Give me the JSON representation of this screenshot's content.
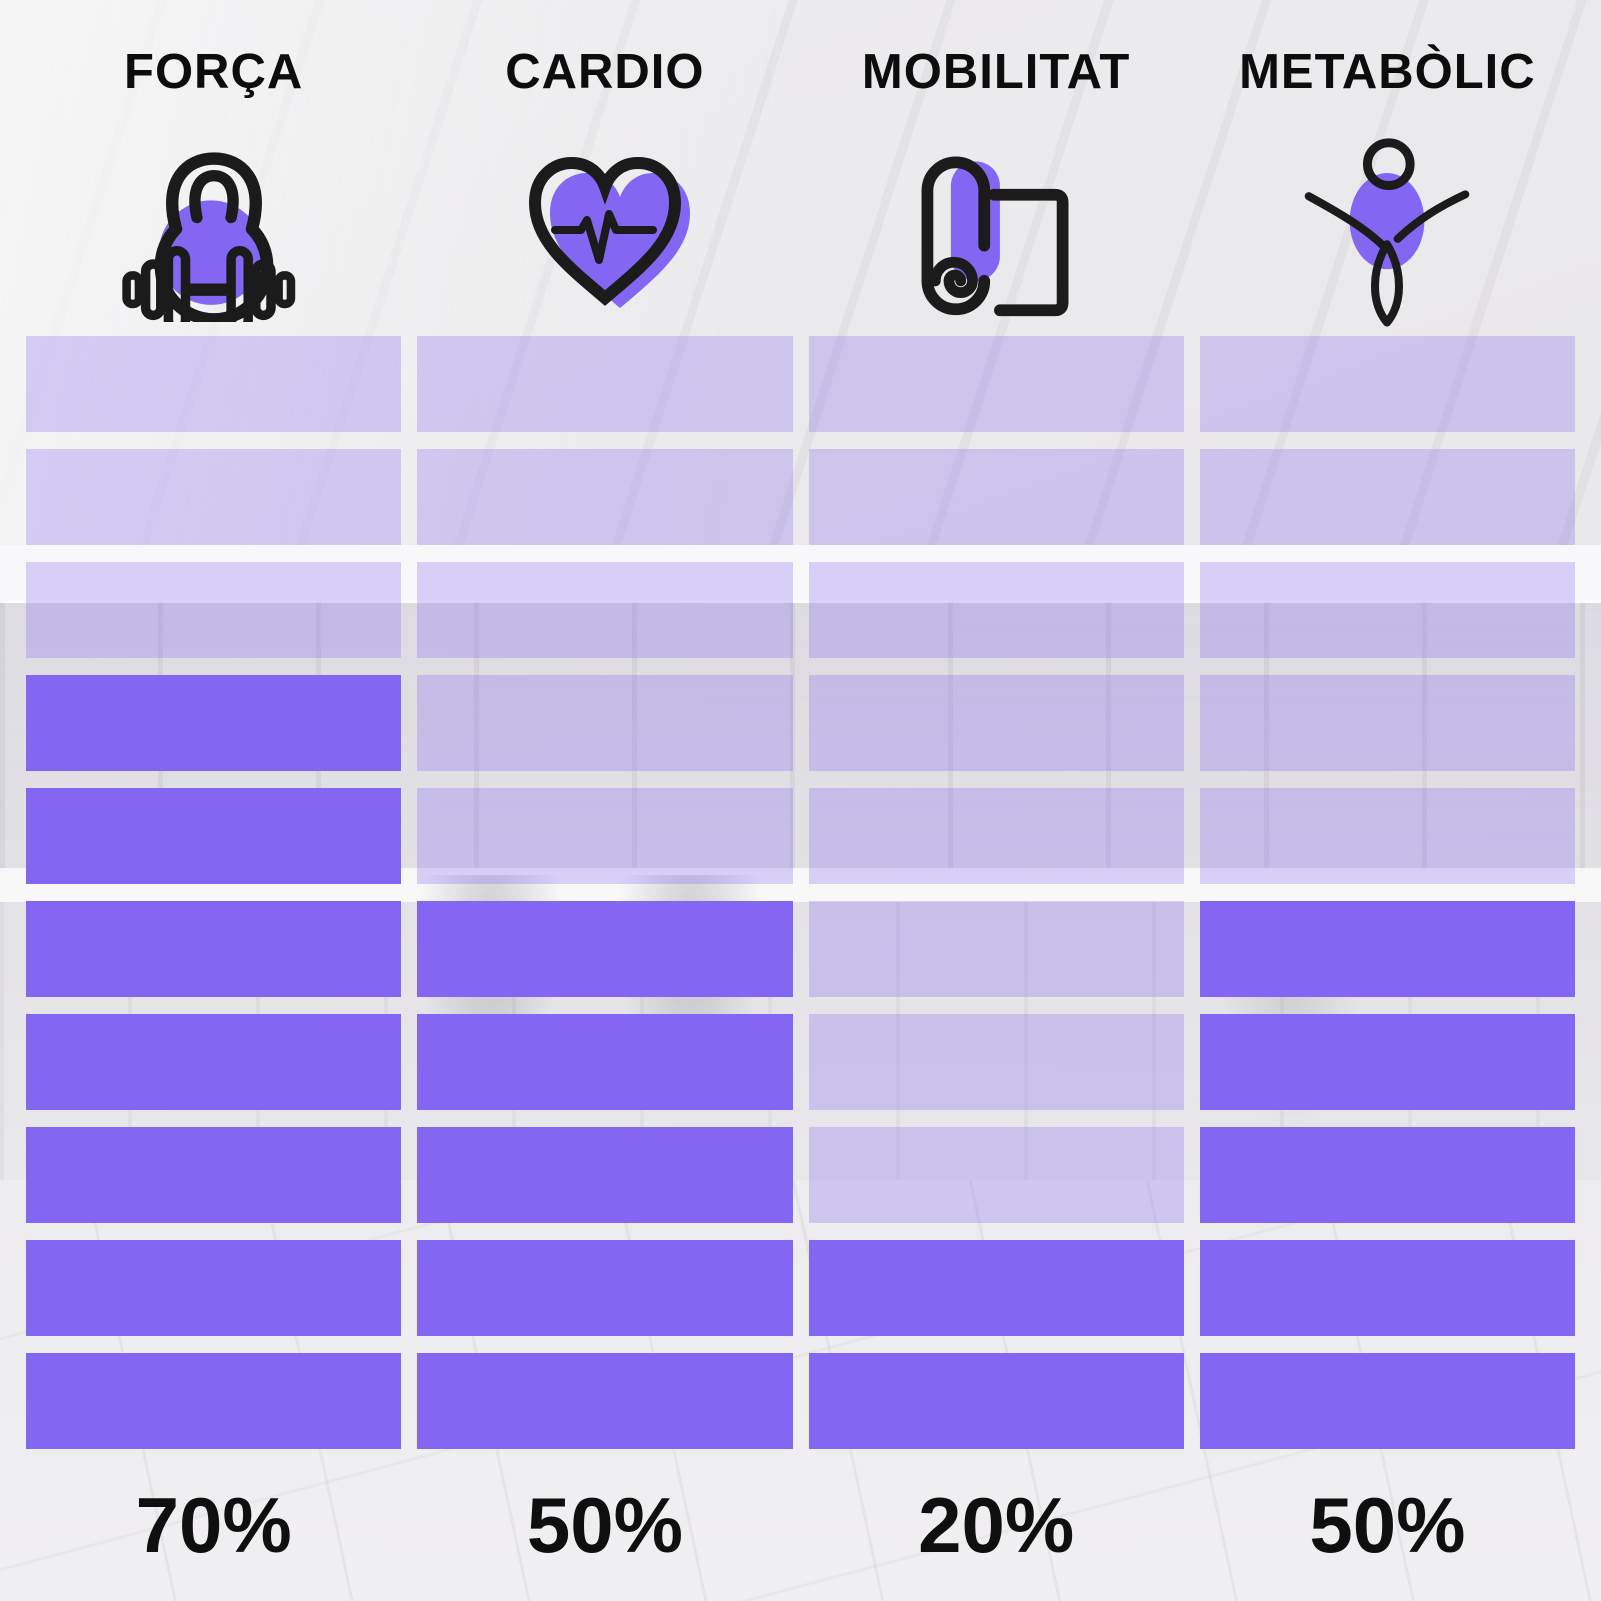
{
  "chart_data": {
    "type": "bar",
    "orientation": "vertical-segmented",
    "title": "",
    "categories": [
      "FORÇA",
      "CARDIO",
      "MOBILITAT",
      "METABÒLIC"
    ],
    "values": [
      70,
      50,
      20,
      50
    ],
    "value_labels": [
      "70%",
      "50%",
      "20%",
      "50%"
    ],
    "segments_total": 10,
    "segments_filled": [
      7,
      5,
      2,
      5
    ],
    "icons": [
      "kettlebell-dumbbell-icon",
      "heart-pulse-icon",
      "yoga-mat-icon",
      "gymnast-figure-icon"
    ],
    "ylim": [
      0,
      100
    ],
    "legend_position": "none",
    "grid": "off"
  },
  "colors": {
    "accent": "#8366F2",
    "accent_faded": "rgba(131,102,242,0.28)",
    "ink": "#111111",
    "icon_stroke": "#1b1b1b",
    "background": "#EAE9EB"
  }
}
